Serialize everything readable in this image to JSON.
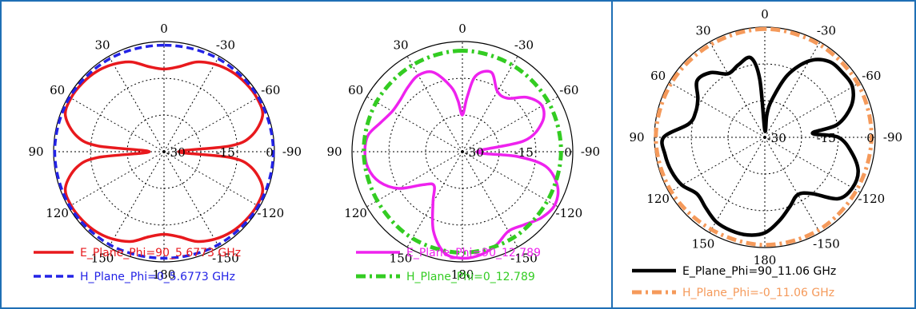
{
  "chart_data": [
    {
      "type": "polar",
      "angle_ticks": [
        "0",
        "30",
        "60",
        "90",
        "120",
        "150",
        "180",
        "-150",
        "-120",
        "-90",
        "-60",
        "-30"
      ],
      "ring_ticks": [
        "0",
        "-15",
        "-30"
      ],
      "r_range": [
        -30,
        0
      ],
      "series": [
        {
          "name": "E_Plane_Phi=90_5.6773 GHz",
          "color": "#e8191d",
          "style": "solid",
          "angles": [
            0,
            10,
            20,
            30,
            40,
            50,
            60,
            70,
            80,
            85,
            90,
            95,
            100,
            110,
            120,
            130,
            140,
            150,
            160,
            170,
            180,
            190,
            200,
            210,
            220,
            230,
            240,
            250,
            260,
            265,
            270,
            275,
            280,
            290,
            300,
            310,
            320,
            330,
            340,
            350
          ],
          "values": [
            -7.5,
            -6.5,
            -4,
            -2.5,
            -1.5,
            -1,
            -0.8,
            -1.5,
            -6,
            -12,
            -26,
            -12,
            -6,
            -1.5,
            -0.8,
            -1,
            -1.5,
            -2.5,
            -4,
            -6.5,
            -7.5,
            -6.5,
            -4,
            -2.5,
            -1.5,
            -1,
            -0.8,
            -1.5,
            -6,
            -12,
            -26,
            -12,
            -6,
            -1.5,
            -0.8,
            -1,
            -1.5,
            -2.5,
            -4,
            -6.5
          ]
        },
        {
          "name": "H_Plane_Phi=0_5.6773 GHz",
          "color": "#2323e6",
          "style": "dashed",
          "angles": [
            0,
            30,
            60,
            90,
            120,
            150,
            180,
            210,
            240,
            270,
            300,
            330
          ],
          "values": [
            -1,
            -0.7,
            -0.4,
            -0.3,
            -0.4,
            -0.7,
            -1,
            -0.7,
            -0.4,
            -0.3,
            -0.4,
            -0.7
          ]
        }
      ]
    },
    {
      "type": "polar",
      "angle_ticks": [
        "0",
        "30",
        "60",
        "90",
        "120",
        "150",
        "180",
        "-150",
        "-120",
        "-90",
        "-60",
        "-30"
      ],
      "ring_ticks": [
        "0",
        "-15",
        "-30"
      ],
      "r_range": [
        -30,
        0
      ],
      "series": [
        {
          "name": "E_Plane_Phi=90_12.789",
          "color": "#ee22ee",
          "style": "solid",
          "angles": [
            0,
            5,
            10,
            20,
            30,
            40,
            50,
            60,
            70,
            80,
            90,
            100,
            110,
            120,
            130,
            140,
            150,
            160,
            170,
            180,
            190,
            200,
            210,
            220,
            230,
            240,
            250,
            260,
            265,
            270,
            280,
            290,
            300,
            310,
            320,
            330,
            340,
            350,
            355
          ],
          "values": [
            -20,
            -16,
            -12,
            -7,
            -6,
            -7,
            -8,
            -8,
            -6.5,
            -4,
            -3.5,
            -4,
            -6,
            -10,
            -16,
            -18,
            -14,
            -7,
            -2,
            -1,
            -1.5,
            -3,
            -5,
            -4,
            -2,
            -1,
            -2.5,
            -7,
            -15,
            -26,
            -13,
            -7,
            -5,
            -7,
            -11,
            -11,
            -7,
            -9,
            -15
          ]
        },
        {
          "name": "H_Plane_Phi=0_12.789",
          "color": "#33cc22",
          "style": "dashdot",
          "angles": [
            0,
            30,
            60,
            90,
            120,
            150,
            180,
            210,
            240,
            270,
            300,
            330
          ],
          "values": [
            -2.5,
            -2.8,
            -3,
            -3.2,
            -3.3,
            -2.8,
            -2.5,
            -2.8,
            -3.3,
            -3.2,
            -3,
            -2.8
          ]
        }
      ]
    },
    {
      "type": "polar",
      "angle_ticks": [
        "0",
        "30",
        "60",
        "90",
        "120",
        "150",
        "180",
        "-150",
        "-120",
        "-90",
        "-60",
        "-30"
      ],
      "ring_ticks": [
        "0",
        "-15",
        "-30"
      ],
      "r_range": [
        -30,
        0
      ],
      "series": [
        {
          "name": "E_Plane_Phi=90_11.06 GHz",
          "color": "#000000",
          "style": "solid",
          "angles": [
            0,
            5,
            10,
            20,
            30,
            40,
            50,
            60,
            70,
            80,
            90,
            100,
            110,
            120,
            130,
            140,
            150,
            160,
            170,
            180,
            190,
            200,
            210,
            220,
            230,
            240,
            250,
            260,
            270,
            275,
            280,
            290,
            300,
            310,
            320,
            330,
            340,
            350,
            355
          ],
          "values": [
            -28,
            -14,
            -8,
            -9,
            -10,
            -7,
            -6,
            -9,
            -10,
            -9,
            -2.5,
            -2.5,
            -3,
            -4,
            -6,
            -5,
            -3.5,
            -3,
            -3,
            -4,
            -7,
            -10,
            -12,
            -10,
            -4,
            -2.5,
            -3,
            -6,
            -10,
            -17,
            -10,
            -5,
            -2.5,
            -2.5,
            -3,
            -6,
            -12,
            -20,
            -24
          ]
        },
        {
          "name": "H_Plane_Phi=-0_11.06 GHz",
          "color": "#f59a5b",
          "style": "dashdot",
          "angles": [
            0,
            30,
            60,
            90,
            120,
            150,
            180,
            210,
            240,
            270,
            300,
            330
          ],
          "values": [
            -0.5,
            -0.8,
            -0.6,
            -0.4,
            -0.6,
            -1,
            -0.7,
            -0.8,
            -1.2,
            -1,
            -0.8,
            -0.7
          ]
        }
      ]
    }
  ]
}
